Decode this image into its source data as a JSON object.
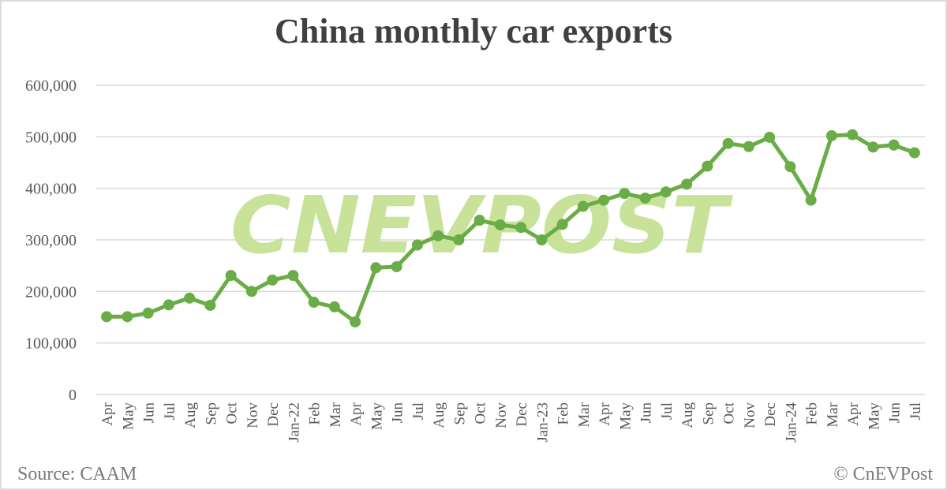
{
  "title": "China monthly car exports",
  "footer": {
    "source": "Source: CAAM",
    "copyright": "© CnEVPost"
  },
  "watermark": "CNEVPOST",
  "colors": {
    "line": "#6aac45",
    "watermark": "#c8e29a",
    "grid": "#d9d9d9",
    "text": "#404040"
  },
  "chart_data": {
    "type": "line",
    "title": "China monthly car exports",
    "xlabel": "",
    "ylabel": "",
    "ylim": [
      0,
      600000
    ],
    "yticks": [
      0,
      100000,
      200000,
      300000,
      400000,
      500000,
      600000
    ],
    "ytick_labels": [
      "0",
      "100,000",
      "200,000",
      "300,000",
      "400,000",
      "500,000",
      "600,000"
    ],
    "grid": true,
    "legend": null,
    "categories": [
      "Apr",
      "May",
      "Jun",
      "Jul",
      "Aug",
      "Sep",
      "Oct",
      "Nov",
      "Dec",
      "Jan-22",
      "Feb",
      "Mar",
      "Apr",
      "May",
      "Jun",
      "Jul",
      "Aug",
      "Sep",
      "Oct",
      "Nov",
      "Dec",
      "Jan-23",
      "Feb",
      "Mar",
      "Apr",
      "May",
      "Jun",
      "Jul",
      "Aug",
      "Sep",
      "Oct",
      "Nov",
      "Dec",
      "Jan-24",
      "Feb",
      "Mar",
      "Apr",
      "May",
      "Jun",
      "Jul"
    ],
    "series": [
      {
        "name": "Car exports",
        "values": [
          151000,
          151000,
          158000,
          174000,
          187000,
          173000,
          231000,
          200000,
          222000,
          231000,
          179000,
          170000,
          141000,
          246000,
          248000,
          290000,
          308000,
          300000,
          338000,
          329000,
          324000,
          300000,
          330000,
          365000,
          377000,
          390000,
          381000,
          393000,
          408000,
          443000,
          487000,
          481000,
          499000,
          442000,
          377000,
          502000,
          504000,
          480000,
          484000,
          469000
        ]
      }
    ]
  }
}
